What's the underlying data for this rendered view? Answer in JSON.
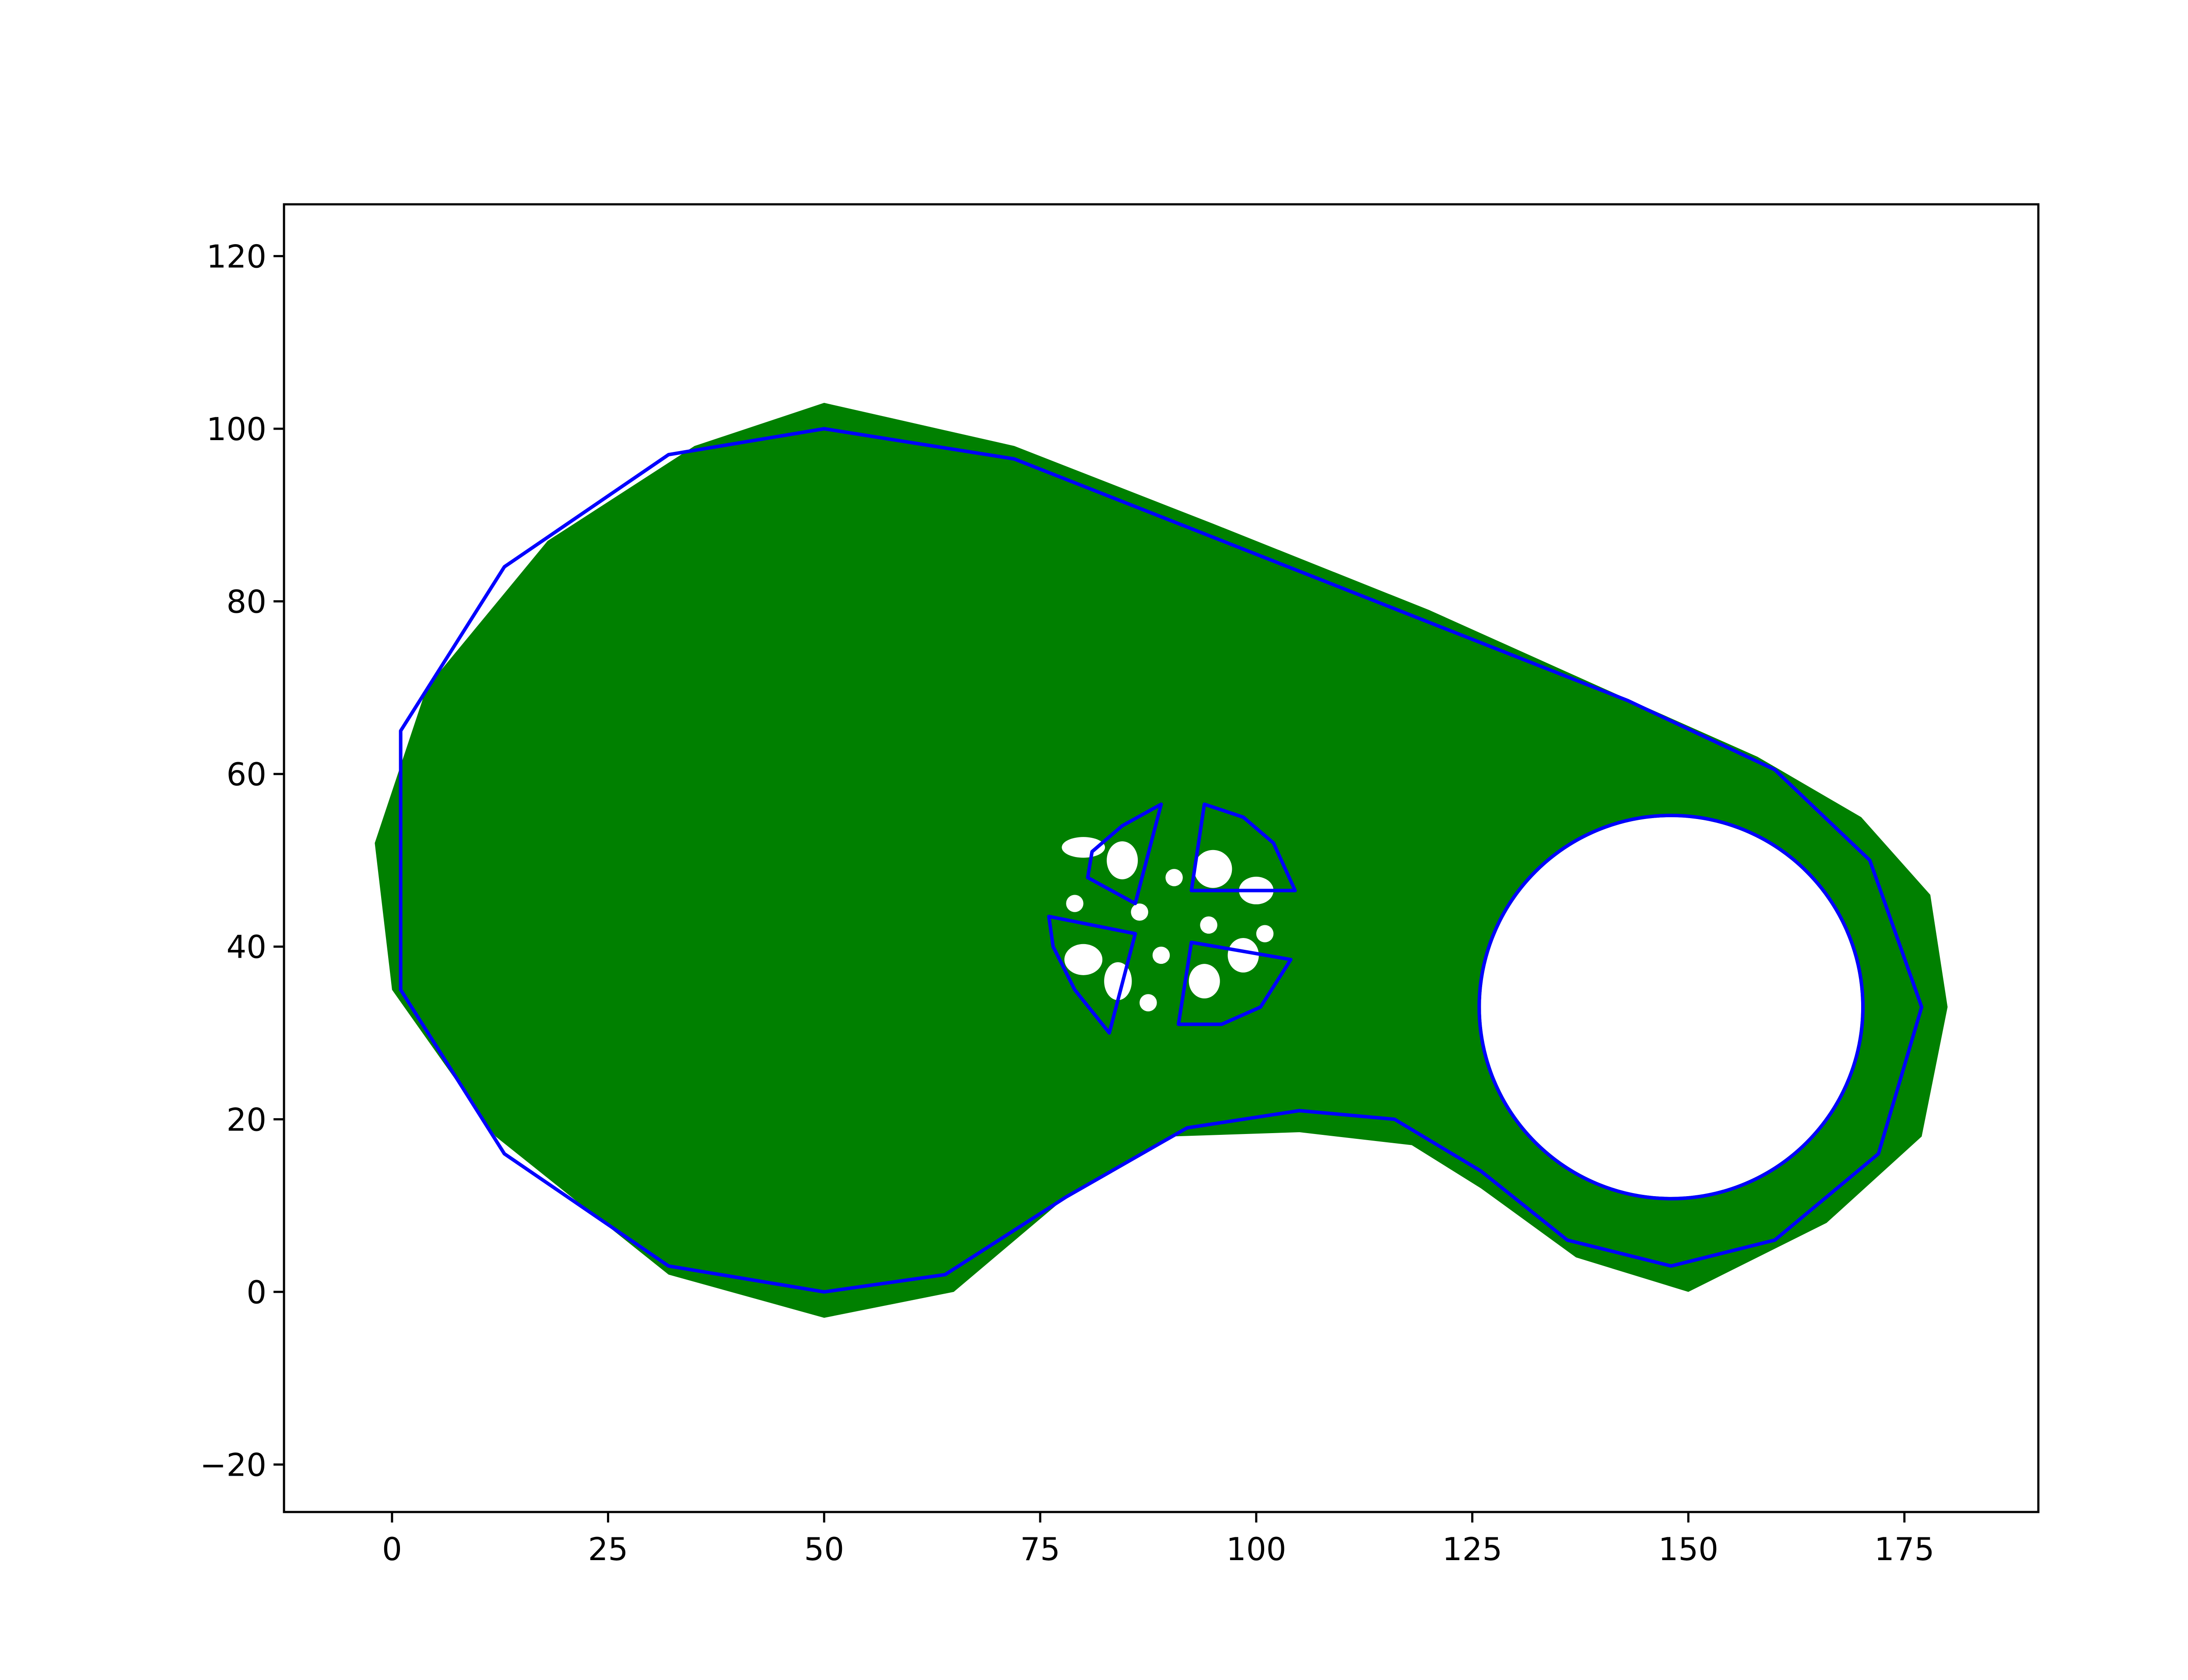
{
  "chart_data": {
    "type": "scatter",
    "title": "",
    "xlabel": "",
    "ylabel": "",
    "xlim": [
      -12.5,
      190.5
    ],
    "ylim": [
      -25.5,
      126
    ],
    "x_ticks": [
      0,
      25,
      50,
      75,
      100,
      125,
      150,
      175
    ],
    "x_tick_labels": [
      "0",
      "25",
      "50",
      "75",
      "100",
      "125",
      "150",
      "175"
    ],
    "y_ticks": [
      -20,
      0,
      20,
      40,
      60,
      80,
      100,
      120
    ],
    "y_tick_labels": [
      "−20",
      "0",
      "20",
      "40",
      "60",
      "80",
      "100",
      "120"
    ],
    "grid": false,
    "legend": "none",
    "colors": {
      "fill": "#008000",
      "outline": "#0000ff",
      "hole": "#ffffff",
      "frame": "#000000"
    },
    "series": [
      {
        "name": "",
        "kind": "filled-region",
        "color": "#008000",
        "outline": [
          [
            50,
            103
          ],
          [
            72,
            98
          ],
          [
            95,
            89
          ],
          [
            120,
            79
          ],
          [
            140,
            70
          ],
          [
            158,
            62
          ],
          [
            170,
            55
          ],
          [
            178,
            46
          ],
          [
            180,
            33
          ],
          [
            177,
            18
          ],
          [
            166,
            8
          ],
          [
            150,
            0
          ],
          [
            137,
            4
          ],
          [
            126,
            12
          ],
          [
            118,
            17
          ],
          [
            105,
            18.5
          ],
          [
            90,
            18
          ],
          [
            78,
            11
          ],
          [
            65,
            0
          ],
          [
            50,
            -3
          ],
          [
            32,
            2
          ],
          [
            12,
            18
          ],
          [
            0,
            35
          ],
          [
            -2,
            52
          ],
          [
            4,
            70
          ],
          [
            18,
            87
          ],
          [
            35,
            98
          ]
        ],
        "holes": [
          {
            "shape": "circle",
            "cx": 148,
            "cy": 33,
            "r": 22
          },
          {
            "shape": "ellipse",
            "cx": 80,
            "cy": 51.5,
            "rx": 2.5,
            "ry": 1.2
          },
          {
            "shape": "ellipse",
            "cx": 84.5,
            "cy": 50,
            "rx": 1.8,
            "ry": 2.2
          },
          {
            "shape": "ellipse",
            "cx": 95,
            "cy": 49,
            "rx": 2.2,
            "ry": 2.2
          },
          {
            "shape": "ellipse",
            "cx": 100,
            "cy": 46.5,
            "rx": 2,
            "ry": 1.6
          },
          {
            "shape": "ellipse",
            "cx": 80,
            "cy": 38.5,
            "rx": 2.2,
            "ry": 1.8
          },
          {
            "shape": "ellipse",
            "cx": 84,
            "cy": 36,
            "rx": 1.6,
            "ry": 2.2
          },
          {
            "shape": "ellipse",
            "cx": 94,
            "cy": 36,
            "rx": 1.8,
            "ry": 2
          },
          {
            "shape": "ellipse",
            "cx": 98.5,
            "cy": 39,
            "rx": 1.8,
            "ry": 2
          },
          {
            "shape": "circle",
            "cx": 90.5,
            "cy": 48,
            "r": 1
          },
          {
            "shape": "circle",
            "cx": 79,
            "cy": 45,
            "r": 1
          },
          {
            "shape": "circle",
            "cx": 86.5,
            "cy": 44,
            "r": 1
          },
          {
            "shape": "circle",
            "cx": 94.5,
            "cy": 42.5,
            "r": 1
          },
          {
            "shape": "circle",
            "cx": 101,
            "cy": 41.5,
            "r": 1
          },
          {
            "shape": "circle",
            "cx": 89,
            "cy": 39,
            "r": 1
          },
          {
            "shape": "circle",
            "cx": 87.5,
            "cy": 33.5,
            "r": 1
          }
        ]
      },
      {
        "name": "",
        "kind": "outline-path",
        "color": "#0000ff",
        "points": [
          [
            50,
            100
          ],
          [
            72,
            96.5
          ],
          [
            143,
            68.5
          ],
          [
            160,
            60.5
          ],
          [
            171,
            50
          ],
          [
            177,
            33
          ],
          [
            172,
            16
          ],
          [
            160,
            6
          ],
          [
            148,
            3
          ],
          [
            136,
            6
          ],
          [
            126,
            14
          ],
          [
            116,
            20
          ],
          [
            105,
            21
          ],
          [
            92,
            19
          ],
          [
            78,
            11
          ],
          [
            64,
            2
          ],
          [
            50,
            0
          ],
          [
            32,
            3
          ],
          [
            13,
            16
          ],
          [
            1,
            35
          ],
          [
            1,
            65
          ],
          [
            13,
            84
          ],
          [
            32,
            97
          ]
        ]
      },
      {
        "name": "",
        "kind": "outline-circle",
        "color": "#0000ff",
        "cx": 148,
        "cy": 33,
        "r": 22.2
      },
      {
        "name": "",
        "kind": "outline-sectors",
        "color": "#0000ff",
        "center": [
          90,
          43
        ],
        "sectors": [
          {
            "points": [
              [
                80.5,
                48
              ],
              [
                81,
                51
              ],
              [
                84.5,
                54
              ],
              [
                89,
                56.5
              ],
              [
                86,
                45
              ]
            ]
          },
          {
            "points": [
              [
                94,
                56.5
              ],
              [
                98.5,
                55
              ],
              [
                102,
                52
              ],
              [
                104.5,
                46.5
              ],
              [
                92.5,
                46.5
              ]
            ]
          },
          {
            "points": [
              [
                76,
                43.5
              ],
              [
                76.5,
                40
              ],
              [
                79,
                35
              ],
              [
                83,
                30
              ],
              [
                86,
                41.5
              ]
            ]
          },
          {
            "points": [
              [
                91,
                31
              ],
              [
                96,
                31
              ],
              [
                100.5,
                33
              ],
              [
                104,
                38.5
              ],
              [
                92.5,
                40.5
              ]
            ]
          }
        ]
      }
    ]
  }
}
